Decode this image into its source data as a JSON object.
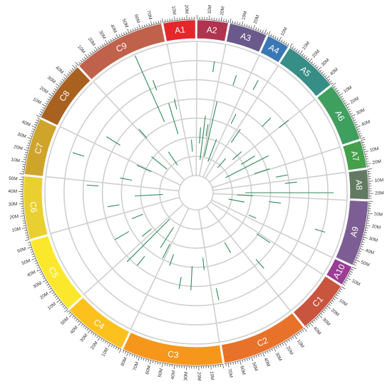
{
  "chart_data": {
    "type": "circos",
    "tick_unit": "M",
    "tick_step": 10,
    "segments": [
      {
        "name": "A1",
        "size": 27,
        "color": "#e5262b"
      },
      {
        "name": "A2",
        "size": 26,
        "color": "#b0344f"
      },
      {
        "name": "A3",
        "size": 32,
        "color": "#6a5a8c"
      },
      {
        "name": "A4",
        "size": 19,
        "color": "#3a78b5"
      },
      {
        "name": "A5",
        "size": 46,
        "color": "#368e87"
      },
      {
        "name": "A6",
        "size": 50,
        "color": "#3f9f5f"
      },
      {
        "name": "A7",
        "size": 23,
        "color": "#44a04a"
      },
      {
        "name": "A8",
        "size": 25,
        "color": "#637a62"
      },
      {
        "name": "A9",
        "size": 55,
        "color": "#7c5e94"
      },
      {
        "name": "A10",
        "size": 17,
        "color": "#9b3d94"
      },
      {
        "name": "C1",
        "size": 45,
        "color": "#c9553f"
      },
      {
        "name": "C2",
        "size": 73,
        "color": "#e8722a"
      },
      {
        "name": "C3",
        "size": 85,
        "color": "#f6971b"
      },
      {
        "name": "C4",
        "size": 54,
        "color": "#fcc11d"
      },
      {
        "name": "C5",
        "size": 65,
        "color": "#fbe82c"
      },
      {
        "name": "C6",
        "size": 53,
        "color": "#e9d030"
      },
      {
        "name": "C7",
        "size": 48,
        "color": "#cfa42a"
      },
      {
        "name": "C8",
        "size": 52,
        "color": "#a9611f"
      },
      {
        "name": "C9",
        "size": 78,
        "color": "#c0614c"
      }
    ],
    "marks": [
      {
        "angle": 336,
        "r0": 0.45,
        "r1": 0.99
      },
      {
        "angle": 339,
        "r0": 0.69,
        "r1": 0.77
      },
      {
        "angle": 343,
        "r0": 0.33,
        "r1": 0.57
      },
      {
        "angle": 347,
        "r0": 0.51,
        "r1": 0.59
      },
      {
        "angle": 355,
        "r0": 0.18,
        "r1": 0.27
      },
      {
        "angle": 4,
        "r0": 0.24,
        "r1": 0.36
      },
      {
        "angle": 7,
        "r0": 0.12,
        "r1": 0.45
      },
      {
        "angle": 8,
        "r0": 0.78,
        "r1": 0.86
      },
      {
        "angle": 10,
        "r0": 0.3,
        "r1": 0.39
      },
      {
        "angle": 13,
        "r0": 0.15,
        "r1": 0.57
      },
      {
        "angle": 19,
        "r0": 0.72,
        "r1": 0.8
      },
      {
        "angle": 21,
        "r0": 0.12,
        "r1": 0.3
      },
      {
        "angle": 27,
        "r0": 0.45,
        "r1": 0.53
      },
      {
        "angle": 29,
        "r0": 0.75,
        "r1": 0.83
      },
      {
        "angle": 35,
        "r0": 0.33,
        "r1": 0.45
      },
      {
        "angle": 41,
        "r0": 0.12,
        "r1": 0.21
      },
      {
        "angle": 45,
        "r0": 0.57,
        "r1": 0.66
      },
      {
        "angle": 48,
        "r0": 0.24,
        "r1": 0.33
      },
      {
        "angle": 52,
        "r0": 0.66,
        "r1": 0.75
      },
      {
        "angle": 58,
        "r0": 0.27,
        "r1": 0.39
      },
      {
        "angle": 63,
        "r0": 0.12,
        "r1": 0.48
      },
      {
        "angle": 72,
        "r0": 0.33,
        "r1": 0.45
      },
      {
        "angle": 79,
        "r0": 0.48,
        "r1": 0.57
      },
      {
        "angle": 84,
        "r0": 0.54,
        "r1": 0.63
      },
      {
        "angle": 90,
        "r0": 0.24,
        "r1": 0.9
      },
      {
        "angle": 93,
        "r0": 0.18,
        "r1": 0.3
      },
      {
        "angle": 97,
        "r0": 0.42,
        "r1": 0.51
      },
      {
        "angle": 101,
        "r0": 0.12,
        "r1": 0.24
      },
      {
        "angle": 107,
        "r0": 0.8,
        "r1": 0.88
      },
      {
        "angle": 113,
        "r0": 0.3,
        "r1": 0.36
      },
      {
        "angle": 124,
        "r0": 0.42,
        "r1": 0.54
      },
      {
        "angle": 138,
        "r0": 0.54,
        "r1": 0.63
      },
      {
        "angle": 150,
        "r0": 0.3,
        "r1": 0.39
      },
      {
        "angle": 168,
        "r0": 0.6,
        "r1": 0.69
      },
      {
        "angle": 174,
        "r0": 0.36,
        "r1": 0.45
      },
      {
        "angle": 183,
        "r0": 0.42,
        "r1": 0.6
      },
      {
        "angle": 190,
        "r0": 0.51,
        "r1": 0.6
      },
      {
        "angle": 200,
        "r0": 0.36,
        "r1": 0.45
      },
      {
        "angle": 207,
        "r0": 0.3,
        "r1": 0.42
      },
      {
        "angle": 213,
        "r0": 0.18,
        "r1": 0.36
      },
      {
        "angle": 219,
        "r0": 0.48,
        "r1": 0.57
      },
      {
        "angle": 225,
        "r0": 0.15,
        "r1": 0.6
      },
      {
        "angle": 231,
        "r0": 0.3,
        "r1": 0.39
      },
      {
        "angle": 240,
        "r0": 0.45,
        "r1": 0.57
      },
      {
        "angle": 248,
        "r0": 0.3,
        "r1": 0.39
      },
      {
        "angle": 261,
        "r0": 0.45,
        "r1": 0.54
      },
      {
        "angle": 267,
        "r0": 0.12,
        "r1": 0.33
      },
      {
        "angle": 274,
        "r0": 0.6,
        "r1": 0.69
      },
      {
        "angle": 281,
        "r0": 0.36,
        "r1": 0.45
      },
      {
        "angle": 288,
        "r0": 0.75,
        "r1": 0.84
      },
      {
        "angle": 295,
        "r0": 0.24,
        "r1": 0.36
      },
      {
        "angle": 302,
        "r0": 0.54,
        "r1": 0.66
      },
      {
        "angle": 309,
        "r0": 0.15,
        "r1": 0.3
      },
      {
        "angle": 318,
        "r0": 0.42,
        "r1": 0.51
      },
      {
        "angle": 326,
        "r0": 0.12,
        "r1": 0.24
      }
    ]
  }
}
